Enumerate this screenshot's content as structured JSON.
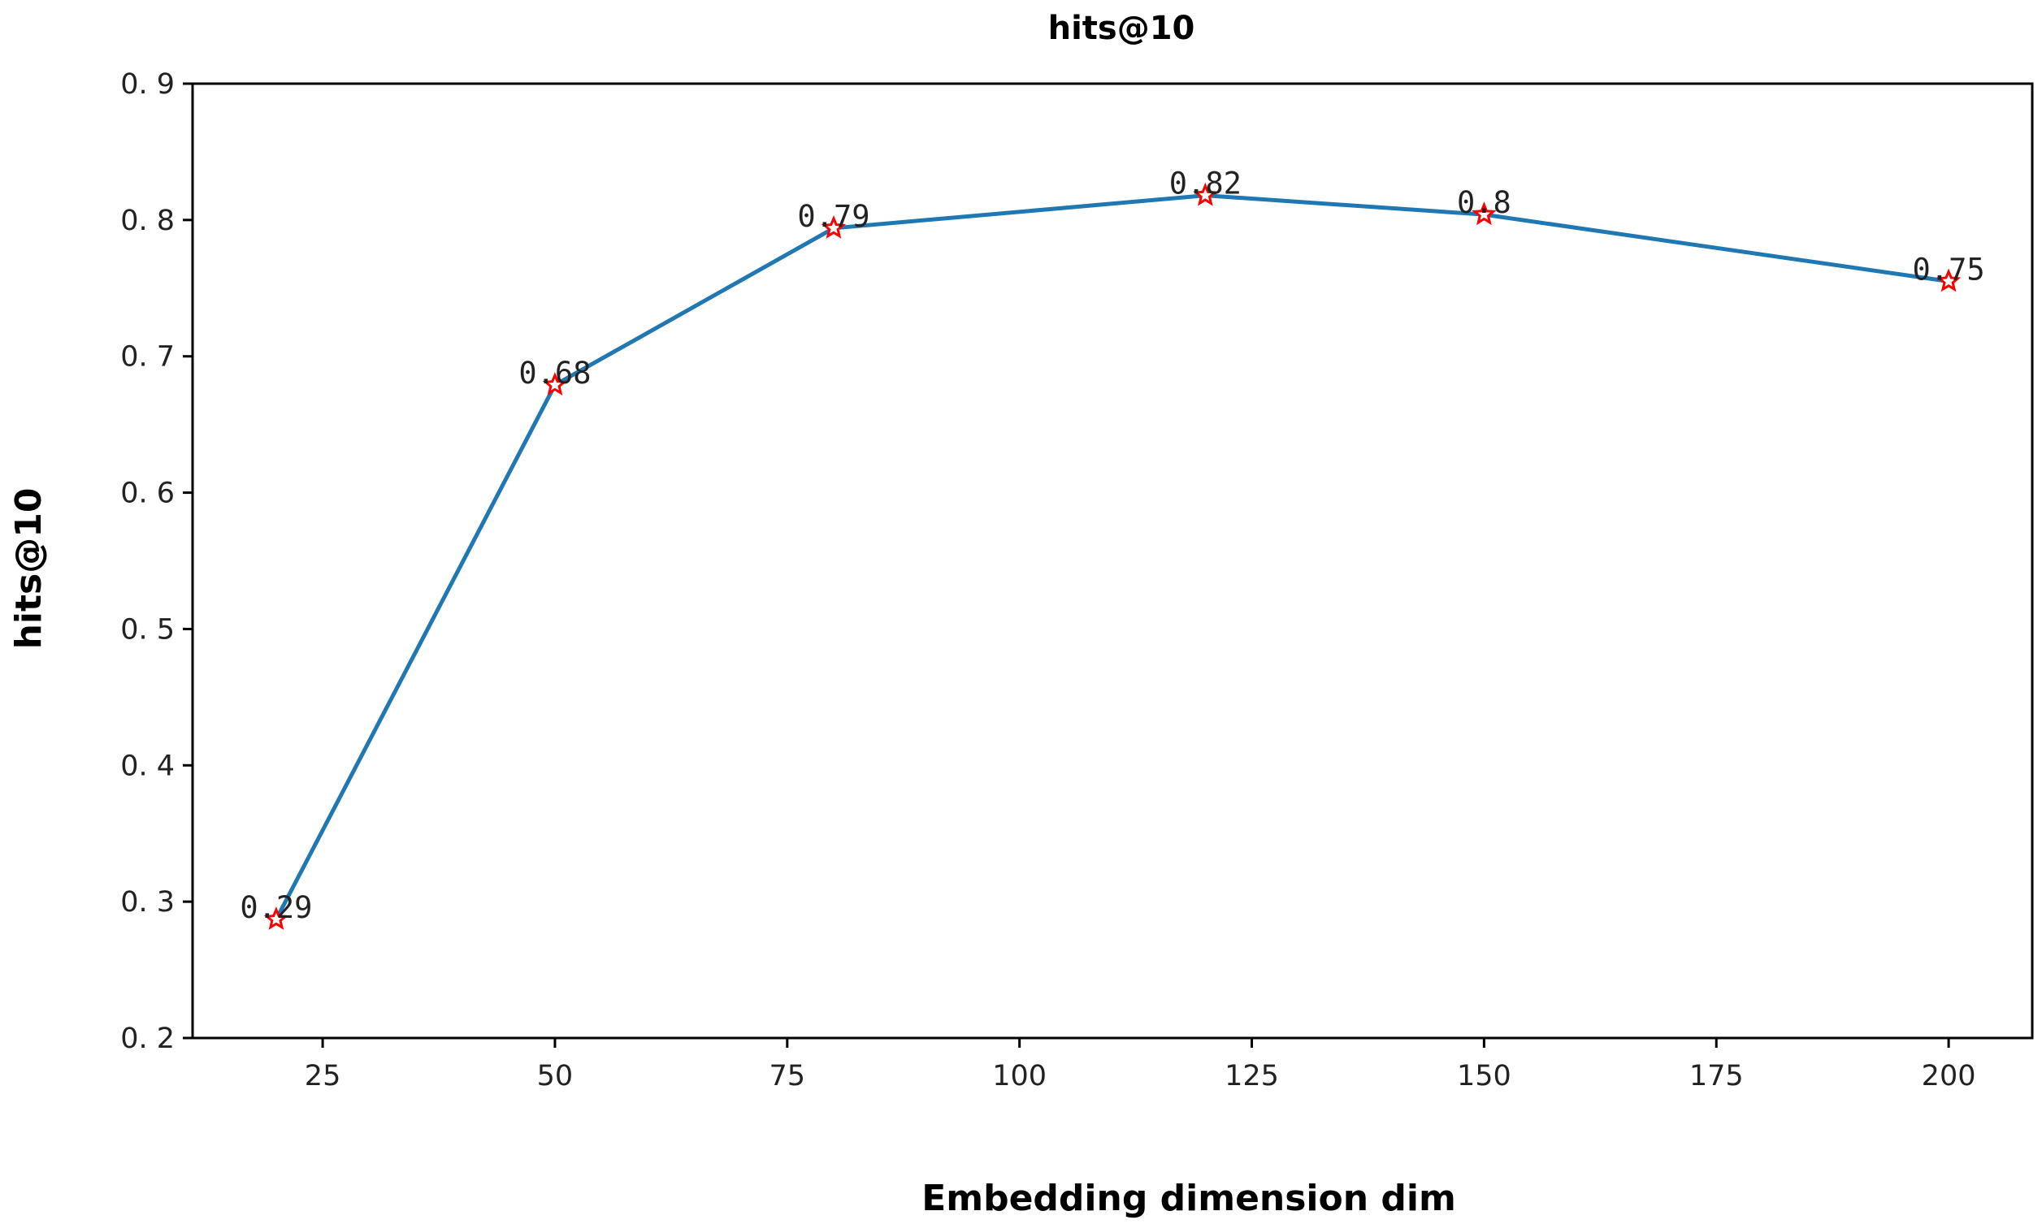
{
  "chart_data": {
    "type": "line",
    "title": "hits@10",
    "xlabel": "Embedding dimension dim",
    "ylabel": "hits@10",
    "x": [
      20,
      50,
      80,
      120,
      150,
      200
    ],
    "series": [
      {
        "values": [
          0.287,
          0.679,
          0.794,
          0.818,
          0.804,
          0.755
        ],
        "data_labels": [
          "0.29",
          "0.68",
          "0.79",
          "0.82",
          "0.8",
          "0.75"
        ],
        "line_color": "#1f77b4",
        "marker": "star",
        "marker_color": "#ff0000"
      }
    ],
    "xlim": [
      11,
      209
    ],
    "ylim": [
      0.2,
      0.9
    ],
    "xticks": [
      25,
      50,
      75,
      100,
      125,
      150,
      175,
      200
    ],
    "xtick_labels": [
      "25",
      "50",
      "75",
      "100",
      "125",
      "150",
      "175",
      "200"
    ],
    "yticks": [
      0.2,
      0.3,
      0.4,
      0.5,
      0.6,
      0.7,
      0.8,
      0.9
    ],
    "ytick_labels": [
      "0. 2",
      "0. 3",
      "0. 4",
      "0. 5",
      "0. 6",
      "0. 7",
      "0. 8",
      "0. 9"
    ],
    "grid": false,
    "legend": "none"
  }
}
